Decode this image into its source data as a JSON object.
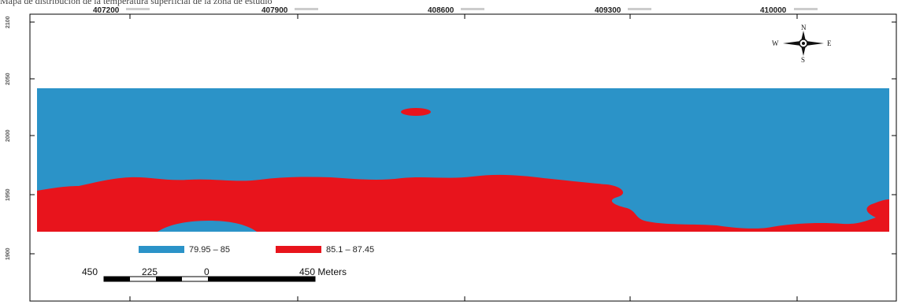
{
  "caption": "Mapa de distribución de la temperatura superficial de la zona de estudio",
  "map": {
    "x_ticks": [
      "407200",
      "407900",
      "408600",
      "409300",
      "410000"
    ],
    "y_ticks": [
      "2100",
      "2050",
      "2000",
      "1950",
      "1900"
    ],
    "legend": [
      {
        "label": "79.95 – 85",
        "color": "#2b93c8"
      },
      {
        "label": "85.1 – 87.45",
        "color": "#e8141c"
      }
    ],
    "scale_bar": {
      "labels": [
        "450",
        "225",
        "0",
        "450 Meters"
      ]
    },
    "compass": {
      "n": "N",
      "s": "S",
      "e": "E",
      "w": "W"
    },
    "colors": {
      "water": "#2b93c8",
      "hot": "#e8141c",
      "frame": "#000000"
    }
  }
}
